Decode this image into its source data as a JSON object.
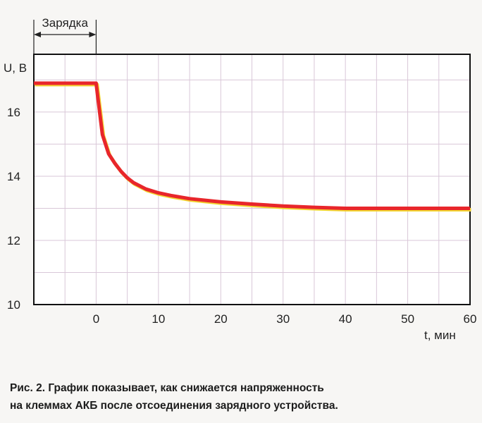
{
  "chart_data": {
    "type": "line",
    "x_label": "t, мин",
    "y_label": "U, В",
    "xlim": [
      -10,
      60
    ],
    "ylim": [
      10,
      17.8
    ],
    "x_ticks": [
      0,
      10,
      20,
      30,
      40,
      50,
      60
    ],
    "y_ticks": [
      10,
      12,
      14,
      16
    ],
    "grid": true,
    "annotation": {
      "text": "Зарядка",
      "x_from": -10,
      "x_to": 0
    },
    "series": [
      {
        "color": "#e8262b",
        "highlight_color": "#f2d530",
        "x": [
          -10,
          0,
          0.3,
          1,
          2,
          3,
          4,
          5,
          6,
          8,
          10,
          12,
          15,
          20,
          25,
          30,
          35,
          40,
          45,
          50,
          55,
          60
        ],
        "y": [
          16.9,
          16.9,
          16.4,
          15.3,
          14.7,
          14.4,
          14.15,
          13.95,
          13.8,
          13.6,
          13.48,
          13.4,
          13.3,
          13.2,
          13.13,
          13.07,
          13.03,
          13.0,
          13.0,
          13.0,
          13.0,
          13.0
        ]
      }
    ]
  },
  "caption": {
    "line1": "Рис. 2. График показывает, как снижается напряженность",
    "line2": "на клеммах АКБ после отсоединения зарядного устройства."
  }
}
